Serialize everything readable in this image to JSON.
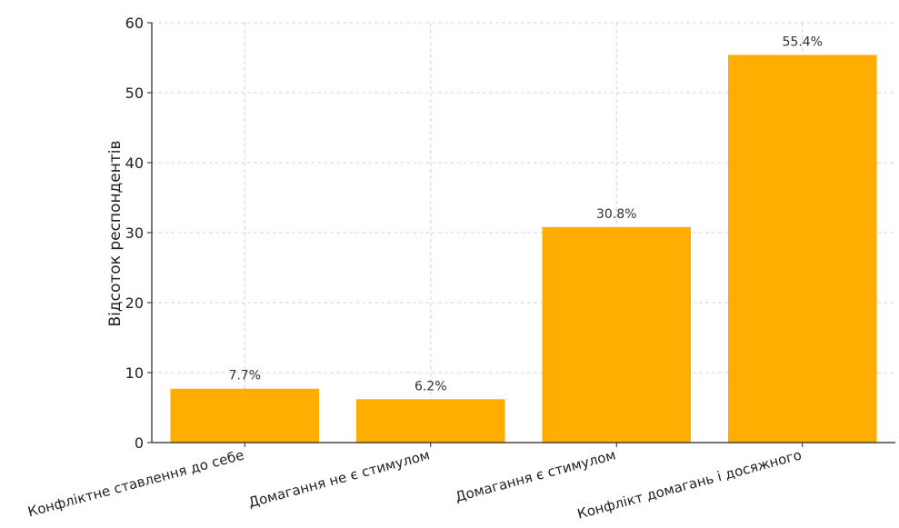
{
  "chart_data": {
    "type": "bar",
    "title": "",
    "xlabel": "",
    "ylabel": "Відсоток респондентів",
    "categories": [
      "Конфліктне ставлення до себе",
      "Домагання не є стимулом",
      "Домагання є стимулом",
      "Конфлікт домагань і досяжного"
    ],
    "values": [
      7.7,
      6.2,
      30.8,
      55.4
    ],
    "data_labels": [
      "7.7%",
      "6.2%",
      "30.8%",
      "55.4%"
    ],
    "ylim": [
      0,
      60
    ],
    "yticks": [
      0,
      10,
      20,
      30,
      40,
      50,
      60
    ],
    "grid": true,
    "bar_color": "#FFAE00"
  }
}
